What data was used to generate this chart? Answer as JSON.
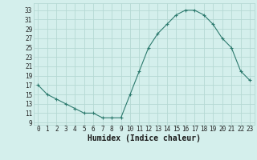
{
  "x": [
    0,
    1,
    2,
    3,
    4,
    5,
    6,
    7,
    8,
    9,
    10,
    11,
    12,
    13,
    14,
    15,
    16,
    17,
    18,
    19,
    20,
    21,
    22,
    23
  ],
  "y": [
    17,
    15,
    14,
    13,
    12,
    11,
    11,
    10,
    10,
    10,
    15,
    20,
    25,
    28,
    30,
    32,
    33,
    33,
    32,
    30,
    27,
    25,
    20,
    18
  ],
  "line_color": "#2d7a6e",
  "marker": "+",
  "bg_color": "#d4efec",
  "grid_color": "#b5d9d4",
  "xlabel": "Humidex (Indice chaleur)",
  "xlabel_fontsize": 7,
  "ylabel_ticks": [
    9,
    11,
    13,
    15,
    17,
    19,
    21,
    23,
    25,
    27,
    29,
    31,
    33
  ],
  "xlim": [
    -0.5,
    23.5
  ],
  "ylim": [
    8.5,
    34.5
  ],
  "tick_fontsize": 5.5
}
